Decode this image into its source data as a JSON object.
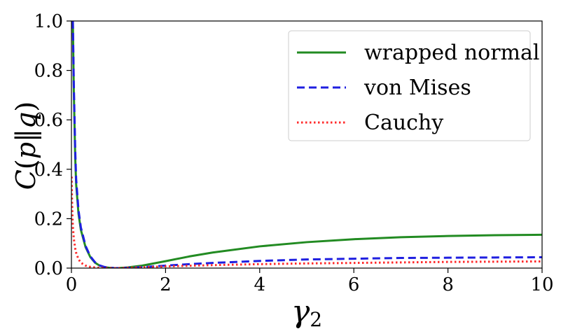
{
  "chart_data": {
    "type": "line",
    "xlabel": "γ",
    "xlabel_sub": "2",
    "ylabel_parts": [
      "C",
      "(",
      "p",
      "‖",
      "q",
      ")"
    ],
    "xlim": [
      0,
      10
    ],
    "ylim": [
      0,
      1.0
    ],
    "xticks": [
      0,
      2,
      4,
      6,
      8,
      10
    ],
    "xtick_labels": [
      "0",
      "2",
      "4",
      "6",
      "8",
      "10"
    ],
    "yticks": [
      0,
      0.2,
      0.4,
      0.6,
      0.8,
      1.0
    ],
    "ytick_labels": [
      "0.0",
      "0.2",
      "0.4",
      "0.6",
      "0.8",
      "1.0"
    ],
    "grid": false,
    "legend_position": "top-right",
    "series": [
      {
        "name": "wrapped normal",
        "color": "#228B22",
        "style": "solid",
        "x": [
          0.03,
          0.05,
          0.08,
          0.1,
          0.15,
          0.2,
          0.3,
          0.4,
          0.5,
          0.6,
          0.7,
          0.8,
          0.9,
          1.0,
          1.2,
          1.5,
          2.0,
          2.5,
          3.0,
          4.0,
          5.0,
          6.0,
          7.0,
          8.0,
          9.0,
          10.0
        ],
        "y": [
          1.0,
          0.72,
          0.45,
          0.34,
          0.22,
          0.155,
          0.085,
          0.045,
          0.022,
          0.01,
          0.004,
          0.0015,
          0.0003,
          0.0,
          0.003,
          0.01,
          0.028,
          0.047,
          0.063,
          0.088,
          0.105,
          0.117,
          0.125,
          0.13,
          0.133,
          0.135
        ]
      },
      {
        "name": "von Mises",
        "color": "#1f1fe0",
        "style": "dashed",
        "x": [
          0.03,
          0.05,
          0.08,
          0.1,
          0.15,
          0.2,
          0.3,
          0.4,
          0.5,
          0.6,
          0.7,
          0.8,
          0.9,
          1.0,
          1.2,
          1.5,
          2.0,
          2.5,
          3.0,
          4.0,
          5.0,
          6.0,
          7.0,
          8.0,
          9.0,
          10.0
        ],
        "y": [
          1.0,
          0.75,
          0.48,
          0.36,
          0.235,
          0.165,
          0.09,
          0.048,
          0.024,
          0.011,
          0.0045,
          0.0016,
          0.0003,
          0.0,
          0.0012,
          0.004,
          0.01,
          0.016,
          0.021,
          0.029,
          0.035,
          0.038,
          0.041,
          0.042,
          0.043,
          0.044
        ]
      },
      {
        "name": "Cauchy",
        "color": "#ff2a2a",
        "style": "dotted",
        "x": [
          0.005,
          0.01,
          0.02,
          0.03,
          0.05,
          0.08,
          0.1,
          0.15,
          0.2,
          0.3,
          0.4,
          0.5,
          0.6,
          0.7,
          0.8,
          0.9,
          1.0,
          1.5,
          2.0,
          3.0,
          4.0,
          5.0,
          6.0,
          7.0,
          8.0,
          9.0,
          10.0
        ],
        "y": [
          0.37,
          0.3,
          0.22,
          0.17,
          0.12,
          0.08,
          0.062,
          0.036,
          0.022,
          0.01,
          0.005,
          0.0025,
          0.0012,
          0.0005,
          0.0002,
          5e-05,
          0.0,
          0.003,
          0.007,
          0.012,
          0.016,
          0.019,
          0.021,
          0.023,
          0.025,
          0.026,
          0.027
        ]
      }
    ]
  }
}
